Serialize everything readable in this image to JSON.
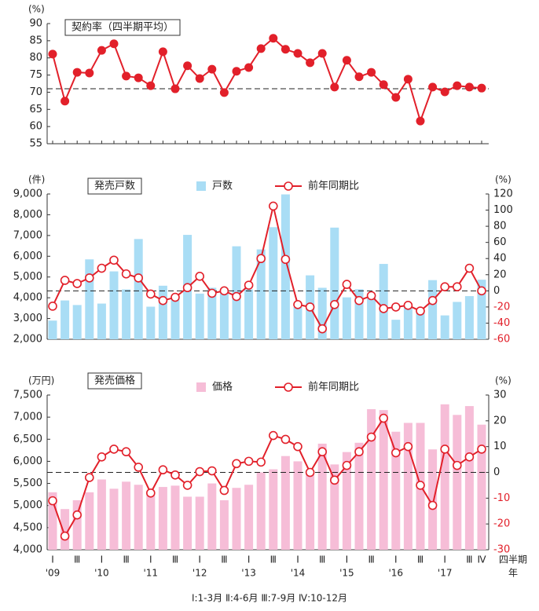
{
  "chart_data": [
    {
      "type": "line",
      "title": "契約率（四半期平均）",
      "unit_label": "(%)",
      "ylim": [
        55,
        90
      ],
      "yticks": [
        55,
        60,
        65,
        70,
        75,
        80,
        85,
        90
      ],
      "reference_line": {
        "value": 71
      },
      "series": [
        {
          "type": "line",
          "color": "#e2202a",
          "marker": "filled",
          "values": [
            81.1,
            67.4,
            75.8,
            75.6,
            82.2,
            84.1,
            74.7,
            74.2,
            71.9,
            81.8,
            71.0,
            77.7,
            74.0,
            76.7,
            69.9,
            76.1,
            77.2,
            82.7,
            85.7,
            82.5,
            81.3,
            78.6,
            81.3,
            71.5,
            79.3,
            74.5,
            75.8,
            72.2,
            68.5,
            73.8,
            61.6,
            71.5,
            70.1,
            71.9,
            71.5,
            71.2
          ]
        }
      ]
    },
    {
      "type": "combo",
      "title": "発売戸数",
      "unit_label": "(件)",
      "y2_unit_label": "(%)",
      "ylim": [
        2000,
        9000
      ],
      "yticks": [
        {
          "value": 2000,
          "label": "2,000"
        },
        {
          "value": 3000,
          "label": "3,000"
        },
        {
          "value": 4000,
          "label": "4,000"
        },
        {
          "value": 5000,
          "label": "5,000"
        },
        {
          "value": 6000,
          "label": "6,000"
        },
        {
          "value": 7000,
          "label": "7,000"
        },
        {
          "value": 8000,
          "label": "8,000"
        },
        {
          "value": 9000,
          "label": "9,000"
        }
      ],
      "y2lim": [
        -60,
        120
      ],
      "y2ticks": [
        -60,
        -40,
        -20,
        0,
        20,
        40,
        60,
        80,
        100,
        120
      ],
      "reference_line": {
        "value": 0,
        "axis": "y2"
      },
      "series": [
        {
          "type": "bar",
          "name": "戸数",
          "color": "#a9ddf5",
          "values": [
            2900,
            3870,
            3650,
            5850,
            3720,
            5270,
            4400,
            6830,
            3570,
            4580,
            3980,
            7030,
            4200,
            4480,
            4400,
            6480,
            4400,
            6330,
            7400,
            8980,
            3550,
            5080,
            4480,
            7380,
            4020,
            4410,
            4100,
            5630,
            2940,
            3600,
            3400,
            4850,
            3150,
            3800,
            4080,
            4870
          ]
        },
        {
          "type": "line",
          "name": "前年同期比",
          "color": "#e2202a",
          "axis": "y2",
          "marker": "open",
          "values": [
            -19,
            13,
            9,
            16,
            28,
            38,
            21,
            16,
            -4,
            -12,
            -8,
            4,
            18,
            -3,
            0,
            -7,
            7,
            40,
            105,
            39,
            -17,
            -20,
            -47,
            -17,
            8,
            -12,
            -6,
            -22,
            -20,
            -18,
            -25,
            -12,
            5,
            5,
            28,
            0
          ]
        }
      ]
    },
    {
      "type": "combo",
      "title": "発売価格",
      "unit_label": "(万円)",
      "y2_unit_label": "(%)",
      "ylim": [
        4000,
        7500
      ],
      "yticks": [
        {
          "value": 4000,
          "label": "4,000"
        },
        {
          "value": 4500,
          "label": "4,500"
        },
        {
          "value": 5000,
          "label": "5,000"
        },
        {
          "value": 5500,
          "label": "5,500"
        },
        {
          "value": 6000,
          "label": "6,000"
        },
        {
          "value": 6500,
          "label": "6,500"
        },
        {
          "value": 7000,
          "label": "7,000"
        },
        {
          "value": 7500,
          "label": "7,500"
        }
      ],
      "y2lim": [
        -30,
        30
      ],
      "y2ticks": [
        -30,
        -20,
        -10,
        0,
        10,
        20,
        30
      ],
      "reference_line": {
        "value": 0,
        "axis": "y2"
      },
      "categories": [
        "Ⅰ",
        null,
        "Ⅲ",
        null,
        "Ⅰ",
        null,
        "Ⅲ",
        null,
        "Ⅰ",
        null,
        "Ⅲ",
        null,
        "Ⅰ",
        null,
        "Ⅲ",
        null,
        "Ⅰ",
        null,
        "Ⅲ",
        null,
        "Ⅰ",
        null,
        "Ⅲ",
        null,
        "Ⅰ",
        null,
        "Ⅲ",
        null,
        "Ⅰ",
        null,
        "Ⅲ",
        null,
        "Ⅰ",
        null,
        "Ⅲ",
        "Ⅳ"
      ],
      "years": [
        "'09",
        null,
        null,
        null,
        "'10",
        null,
        null,
        null,
        "'11",
        null,
        null,
        null,
        "'12",
        null,
        null,
        null,
        "'13",
        null,
        null,
        null,
        "'14",
        null,
        null,
        null,
        "'15",
        null,
        null,
        null,
        "'16",
        null,
        null,
        null,
        "'17",
        null,
        null,
        null
      ],
      "x_label": "四半期",
      "x_label_year": "年",
      "series": [
        {
          "type": "bar",
          "name": "価格",
          "color": "#f6bdd7",
          "values": [
            5300,
            4920,
            5120,
            5300,
            5590,
            5380,
            5540,
            5470,
            5300,
            5420,
            5450,
            5200,
            5200,
            5500,
            5120,
            5400,
            5470,
            5750,
            5820,
            6120,
            6000,
            5750,
            6400,
            5930,
            6210,
            6420,
            7180,
            7160,
            6670,
            6870,
            6870,
            6270,
            7290,
            7050,
            7250,
            6830
          ]
        },
        {
          "type": "line",
          "name": "前年同期比",
          "color": "#e2202a",
          "axis": "y2",
          "marker": "open",
          "values": [
            -11,
            -24.7,
            -16.5,
            -2,
            6,
            9,
            8,
            2,
            -8,
            1,
            -1,
            -5,
            0.3,
            0.6,
            -7,
            3.4,
            4.3,
            4,
            14.3,
            12.8,
            10,
            0,
            8,
            -3,
            2.7,
            8,
            13.7,
            21,
            7.6,
            10,
            -5,
            -12.8,
            9,
            2.7,
            6,
            9
          ]
        }
      ]
    }
  ],
  "footnote": "Ⅰ:1-3月  Ⅱ:4-6月  Ⅲ:7-9月  Ⅳ:10-12月"
}
